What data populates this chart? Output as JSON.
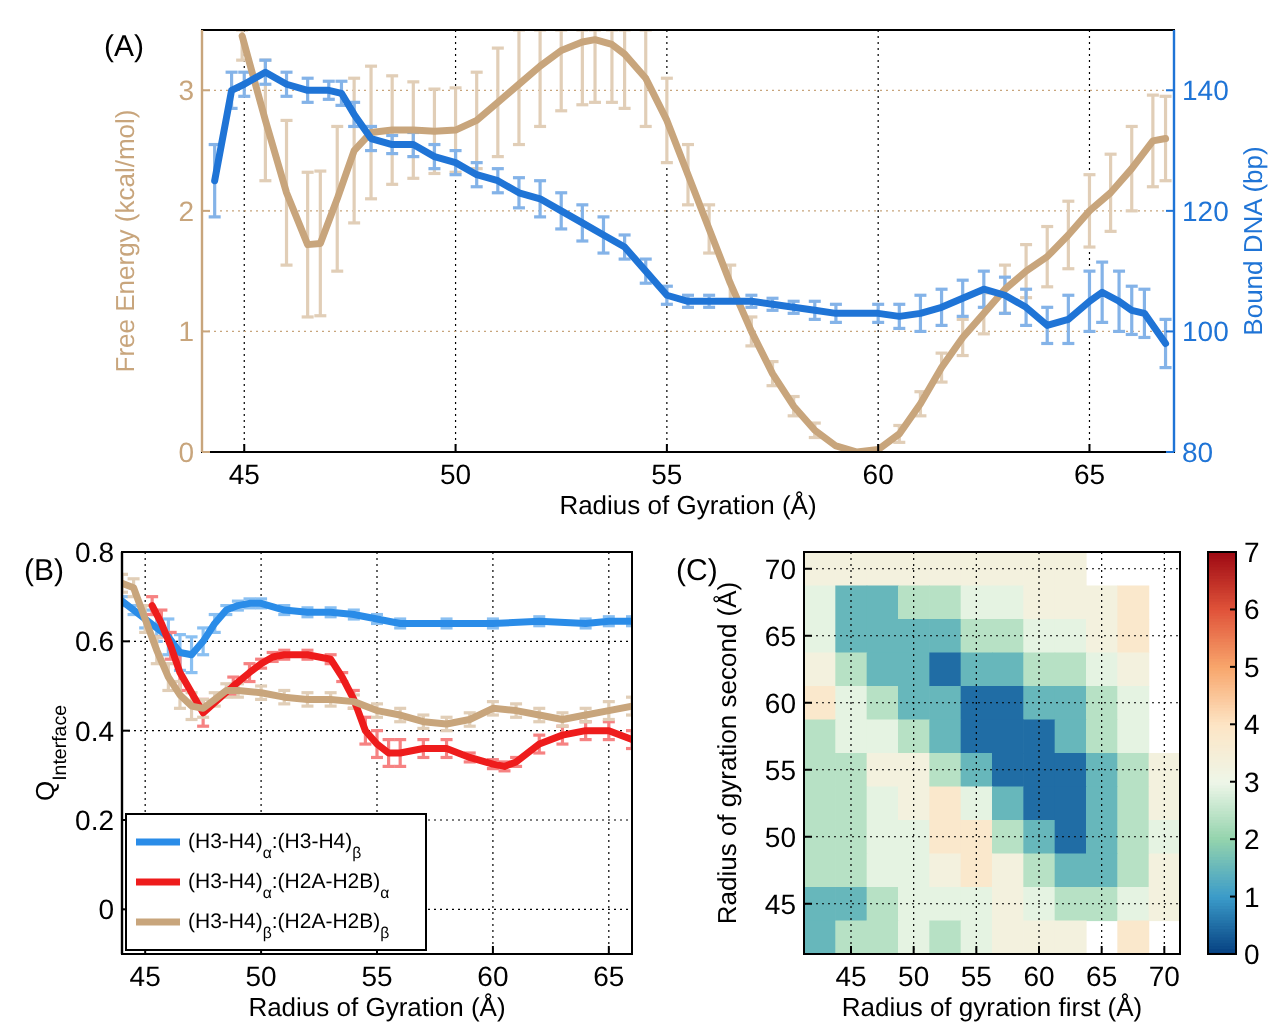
{
  "chart_data": [
    {
      "type": "line",
      "title": "(A)",
      "xlabel": "Radius of Gyration (Å)",
      "ylabel": "Free Energy (kcal/mol)",
      "y2label": "Bound DNA (bp)",
      "xlim": [
        44,
        67
      ],
      "xticks": [
        45,
        50,
        55,
        60,
        65
      ],
      "ylim": [
        0,
        3.5
      ],
      "yticks": [
        0,
        1,
        2,
        3
      ],
      "y2lim": [
        80,
        150
      ],
      "y2ticks": [
        80,
        100,
        120,
        140
      ],
      "grid": true,
      "legend": false,
      "series": [
        {
          "color": "#c8a57c",
          "x": [
            44.95,
            45.5,
            46,
            46.5,
            46.8,
            47.2,
            47.6,
            48,
            48.5,
            49,
            49.5,
            50,
            50.5,
            51,
            51.5,
            52,
            52.5,
            53,
            53.3,
            53.7,
            54,
            54.5,
            55,
            55.5,
            56,
            56.5,
            57,
            57.5,
            58,
            58.5,
            59,
            59.5,
            60,
            60.5,
            61,
            61.5,
            62,
            62.5,
            63,
            63.5,
            64,
            64.5,
            65,
            65.5,
            66,
            66.5,
            66.8
          ],
          "values": [
            3.45,
            2.75,
            2.15,
            1.72,
            1.73,
            2.1,
            2.5,
            2.65,
            2.67,
            2.67,
            2.66,
            2.67,
            2.75,
            2.9,
            3.05,
            3.2,
            3.33,
            3.4,
            3.42,
            3.38,
            3.3,
            3.1,
            2.75,
            2.3,
            1.85,
            1.4,
            1.0,
            0.65,
            0.38,
            0.18,
            0.05,
            0,
            0.02,
            0.15,
            0.4,
            0.7,
            0.95,
            1.15,
            1.35,
            1.5,
            1.62,
            1.8,
            2.0,
            2.15,
            2.35,
            2.58,
            2.6
          ],
          "errors": [
            [
              3.25,
              3.5
            ],
            [
              2.25,
              3.25
            ],
            [
              1.55,
              2.75
            ],
            [
              1.12,
              2.32
            ],
            [
              1.13,
              2.33
            ],
            [
              1.5,
              2.7
            ],
            [
              1.9,
              3.1
            ],
            [
              2.1,
              3.2
            ],
            [
              2.22,
              3.12
            ],
            [
              2.27,
              3.07
            ],
            [
              2.31,
              3.01
            ],
            [
              2.32,
              3.02
            ],
            [
              2.35,
              3.15
            ],
            [
              2.45,
              3.35
            ],
            [
              2.55,
              3.5
            ],
            [
              2.7,
              3.5
            ],
            [
              2.83,
              3.5
            ],
            [
              2.88,
              3.5
            ],
            [
              2.9,
              3.5
            ],
            [
              2.9,
              3.5
            ],
            [
              2.85,
              3.5
            ],
            [
              2.7,
              3.5
            ],
            [
              2.4,
              3.1
            ],
            [
              2.05,
              2.55
            ],
            [
              1.65,
              2.05
            ],
            [
              1.25,
              1.55
            ],
            [
              0.88,
              1.12
            ],
            [
              0.55,
              0.75
            ],
            [
              0.3,
              0.46
            ],
            [
              0.12,
              0.24
            ],
            null,
            null,
            null,
            [
              0.08,
              0.22
            ],
            [
              0.3,
              0.5
            ],
            [
              0.58,
              0.82
            ],
            [
              0.8,
              1.1
            ],
            [
              0.98,
              1.32
            ],
            [
              1.15,
              1.55
            ],
            [
              1.28,
              1.72
            ],
            [
              1.37,
              1.87
            ],
            [
              1.52,
              2.08
            ],
            [
              1.7,
              2.3
            ],
            [
              1.83,
              2.47
            ],
            [
              2.0,
              2.7
            ],
            [
              2.2,
              2.96
            ],
            [
              2.25,
              2.95
            ]
          ]
        },
        {
          "color": "#1f74d6",
          "axis": "y2",
          "x": [
            44.3,
            44.7,
            45,
            45.5,
            46,
            46.5,
            47,
            47.3,
            47.6,
            48,
            48.5,
            49,
            49.5,
            50,
            50.5,
            51,
            51.5,
            52,
            52.5,
            53,
            53.5,
            54,
            54.5,
            55,
            55.5,
            56,
            57,
            57.5,
            58,
            58.5,
            59,
            60,
            60.5,
            61,
            61.5,
            62,
            62.5,
            63,
            63.5,
            64,
            64.5,
            65,
            65.3,
            65.7,
            66,
            66.3,
            66.8
          ],
          "values": [
            125,
            140,
            141,
            143,
            141,
            140,
            140,
            139.5,
            136,
            132,
            131,
            131,
            129,
            128,
            126,
            125,
            123,
            122,
            120,
            118,
            116,
            114,
            110,
            106,
            105,
            105,
            105,
            104.5,
            104,
            103.5,
            103,
            103,
            102.5,
            103,
            104,
            105.5,
            107,
            106,
            104,
            101,
            102,
            105,
            106.5,
            105,
            103.5,
            103,
            98
          ],
          "errors": [
            6,
            3,
            2,
            2,
            2,
            2,
            1.5,
            2,
            2,
            2,
            1.5,
            2,
            2,
            2,
            2,
            2,
            2.5,
            3,
            3,
            3,
            3,
            2,
            2,
            1.5,
            1,
            1,
            1,
            1,
            1,
            1.5,
            1.5,
            1.5,
            2,
            3,
            3,
            3,
            3,
            3,
            3,
            3,
            4,
            5,
            5,
            5,
            4,
            4,
            4
          ]
        }
      ]
    },
    {
      "type": "line",
      "title": "(B)",
      "xlabel": "Radius of Gyration (Å)",
      "ylabel": "Q$_{Interface}$",
      "xlim": [
        44,
        66
      ],
      "xticks": [
        45,
        50,
        55,
        60,
        65
      ],
      "ylim": [
        -0.1,
        0.8
      ],
      "yticks": [
        0,
        0.2,
        0.4,
        0.6,
        0.8
      ],
      "grid": true,
      "legend": "bottom left",
      "series": [
        {
          "name": "(H3-H4)$_{α}$:(H3-H4)$_{β}$",
          "color": "#2a8ce8",
          "x": [
            44,
            44.5,
            45,
            45.5,
            46,
            46.5,
            47,
            47.5,
            48,
            48.5,
            49,
            49.5,
            50,
            51,
            52,
            53,
            54,
            55,
            56,
            58,
            60,
            62,
            64,
            65,
            66
          ],
          "values": [
            0.69,
            0.67,
            0.65,
            0.63,
            0.61,
            0.575,
            0.57,
            0.6,
            0.64,
            0.67,
            0.68,
            0.685,
            0.685,
            0.67,
            0.665,
            0.665,
            0.66,
            0.65,
            0.64,
            0.64,
            0.64,
            0.645,
            0.64,
            0.645,
            0.645
          ],
          "errors": [
            0.01,
            0.01,
            0.02,
            0.03,
            0.04,
            0.04,
            0.04,
            0.03,
            0.02,
            0.01,
            0.01,
            0.01,
            0.01,
            0.01,
            0.01,
            0.01,
            0.01,
            0.01,
            0.01,
            0.01,
            0.01,
            0.01,
            0.01,
            0.01,
            0.01
          ]
        },
        {
          "name": "(H3-H4)$_{α}$:(H2A-H2B)$_{α}$",
          "color": "#ee1c1c",
          "x": [
            45.3,
            45.7,
            46.1,
            46.5,
            47.5,
            48.8,
            49.5,
            50,
            50.5,
            51,
            52,
            53,
            53.5,
            54,
            54.5,
            55,
            55.5,
            56,
            57,
            58,
            59,
            60,
            60.5,
            61,
            62,
            63,
            64,
            65,
            66
          ],
          "values": [
            0.68,
            0.64,
            0.59,
            0.53,
            0.44,
            0.5,
            0.53,
            0.55,
            0.565,
            0.57,
            0.57,
            0.56,
            0.52,
            0.47,
            0.4,
            0.37,
            0.35,
            0.35,
            0.36,
            0.36,
            0.34,
            0.325,
            0.32,
            0.33,
            0.37,
            0.39,
            0.4,
            0.4,
            0.38
          ],
          "errors": [
            0.02,
            0.03,
            0.03,
            0.04,
            0.03,
            0.02,
            0.02,
            0.01,
            0.01,
            0.01,
            0.01,
            0.01,
            0.01,
            0.02,
            0.03,
            0.03,
            0.03,
            0.03,
            0.02,
            0.02,
            0.01,
            0.01,
            0.01,
            0.01,
            0.02,
            0.02,
            0.02,
            0.02,
            0.02
          ]
        },
        {
          "name": "(H3-H4)$_{β}$:(H2A-H2B)$_{β}$",
          "color": "#c8a57c",
          "x": [
            44,
            44.5,
            45,
            45.5,
            46,
            46.5,
            47,
            47.5,
            48,
            48.5,
            49,
            50,
            51,
            52,
            53,
            54,
            55,
            56,
            57,
            58,
            59,
            60,
            61,
            62,
            63,
            64,
            65,
            66
          ],
          "values": [
            0.73,
            0.72,
            0.65,
            0.58,
            0.52,
            0.48,
            0.455,
            0.45,
            0.47,
            0.49,
            0.49,
            0.485,
            0.475,
            0.47,
            0.47,
            0.465,
            0.445,
            0.435,
            0.42,
            0.415,
            0.425,
            0.45,
            0.445,
            0.435,
            0.425,
            0.435,
            0.445,
            0.455
          ],
          "errors": [
            0.02,
            0.02,
            0.03,
            0.03,
            0.03,
            0.03,
            0.03,
            0.02,
            0.015,
            0.015,
            0.015,
            0.015,
            0.015,
            0.015,
            0.015,
            0.015,
            0.015,
            0.015,
            0.015,
            0.015,
            0.015,
            0.015,
            0.015,
            0.015,
            0.015,
            0.015,
            0.02,
            0.02
          ]
        }
      ]
    },
    {
      "type": "heatmap",
      "title": "(C)",
      "xlabel": "Radius of gyration first (Å)",
      "ylabel": "Radius of gyration second (Å)",
      "grid": true,
      "clim": [
        0,
        7
      ],
      "cticks": [
        0,
        1,
        2,
        3,
        4,
        5,
        6,
        7
      ],
      "colors": [
        "#053f80",
        "#3b9bc9",
        "#93d3ad",
        "#eef6e8",
        "#fde5c5",
        "#f8a66c",
        "#e0533a",
        "#9e0a13"
      ],
      "categories": [
        null,
        "45",
        null,
        "50",
        null,
        "55",
        null,
        "60",
        null,
        "65",
        null,
        "70"
      ],
      "y_categories": [
        "70",
        null,
        "65",
        null,
        "60",
        null,
        "55",
        null,
        "50",
        null,
        "45",
        null
      ],
      "cells": [
        [
          3.3,
          3.3,
          3.3,
          3.3,
          3.3,
          3.3,
          3.3,
          3.3,
          3.3,
          null,
          null,
          null
        ],
        [
          2.9,
          1.5,
          1.5,
          2.4,
          2.4,
          2.9,
          2.9,
          3.3,
          3.3,
          3.3,
          3.8,
          null
        ],
        [
          2.9,
          1.5,
          1.5,
          1.5,
          1.5,
          2.4,
          2.4,
          2.9,
          2.9,
          3.3,
          3.8,
          null
        ],
        [
          3.3,
          2.4,
          1.5,
          1.5,
          0.5,
          1.5,
          1.5,
          2.4,
          2.4,
          2.9,
          3.3,
          null
        ],
        [
          3.8,
          2.9,
          2.4,
          1.5,
          1.5,
          0.5,
          0.5,
          1.5,
          1.5,
          2.4,
          2.9,
          null
        ],
        [
          2.4,
          2.9,
          2.9,
          2.4,
          1.5,
          0.5,
          0.5,
          0.5,
          1.5,
          2.4,
          2.9,
          null
        ],
        [
          2.4,
          2.4,
          3.3,
          3.3,
          2.4,
          1.5,
          0.5,
          0.5,
          0.5,
          1.5,
          2.4,
          3.3
        ],
        [
          2.4,
          2.4,
          2.9,
          3.3,
          3.8,
          2.9,
          1.5,
          0.5,
          0.5,
          1.5,
          2.4,
          3.3
        ],
        [
          2.4,
          2.4,
          2.9,
          2.9,
          3.8,
          3.8,
          2.4,
          1.5,
          0.5,
          1.5,
          2.4,
          2.9
        ],
        [
          2.4,
          2.4,
          2.9,
          2.9,
          3.3,
          3.8,
          3.3,
          2.4,
          1.5,
          1.5,
          2.4,
          3.3
        ],
        [
          1.5,
          1.5,
          2.4,
          2.9,
          2.9,
          2.9,
          3.3,
          2.9,
          2.4,
          2.4,
          2.9,
          3.3
        ],
        [
          1.5,
          2.4,
          2.4,
          2.9,
          2.4,
          2.9,
          3.3,
          3.3,
          3.3,
          null,
          3.8,
          null
        ]
      ]
    }
  ]
}
